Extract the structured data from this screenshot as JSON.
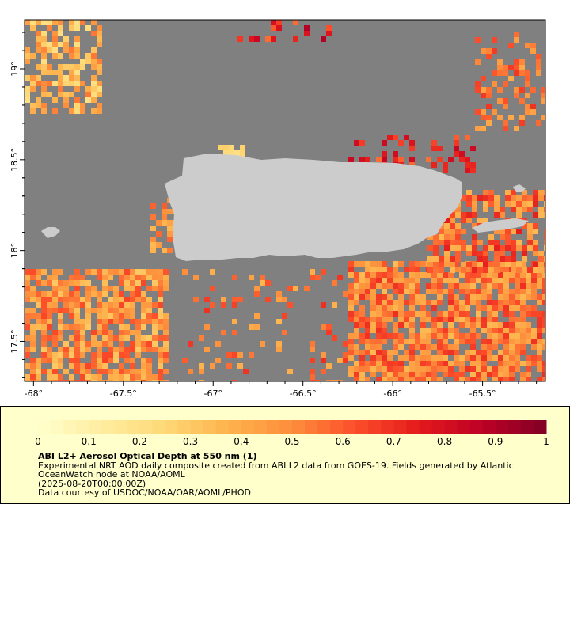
{
  "map": {
    "x_ticks": [
      "-68°",
      "-67.5°",
      "-67°",
      "-66.5°",
      "-66°",
      "-65.5°"
    ],
    "x_tick_values": [
      -68,
      -67.5,
      -67,
      -66.5,
      -66,
      -65.5
    ],
    "y_ticks": [
      "19°",
      "18.5°",
      "18°",
      "17.5°"
    ],
    "y_tick_values": [
      19,
      18.5,
      18,
      17.5
    ],
    "lon_range": [
      -68.05,
      -65.15
    ],
    "lat_range": [
      17.28,
      19.27
    ],
    "colors": {
      "ocean_no_data": "#808080",
      "land": "#cccccc",
      "background": "#ffffff",
      "legend_background": "#ffffcc"
    }
  },
  "colorbar": {
    "labels": [
      "0",
      "0.1",
      "0.2",
      "0.3",
      "0.4",
      "0.5",
      "0.6",
      "0.7",
      "0.8",
      "0.9",
      "1"
    ],
    "values": [
      0,
      0.1,
      0.2,
      0.3,
      0.4,
      0.5,
      0.6,
      0.7,
      0.8,
      0.9,
      1
    ],
    "scale_colors": [
      "#ffffcc",
      "#ffeda0",
      "#fed976",
      "#feb24c",
      "#fd8d3c",
      "#fc4e2a",
      "#e31a1c",
      "#bd0026",
      "#800026"
    ]
  },
  "legend": {
    "title": "ABI L2+ Aerosol Optical Depth at 550 nm (1)",
    "description": "Experimental NRT AOD daily composite created from ABI L2 data from GOES-19. Fields generated by Atlantic OceanWatch node at NOAA/AOML",
    "time": "(2025-08-20T00:00:00Z)",
    "courtesy": "Data courtesy of USDOC/NOAA/OAR/AOML/PHOD"
  }
}
